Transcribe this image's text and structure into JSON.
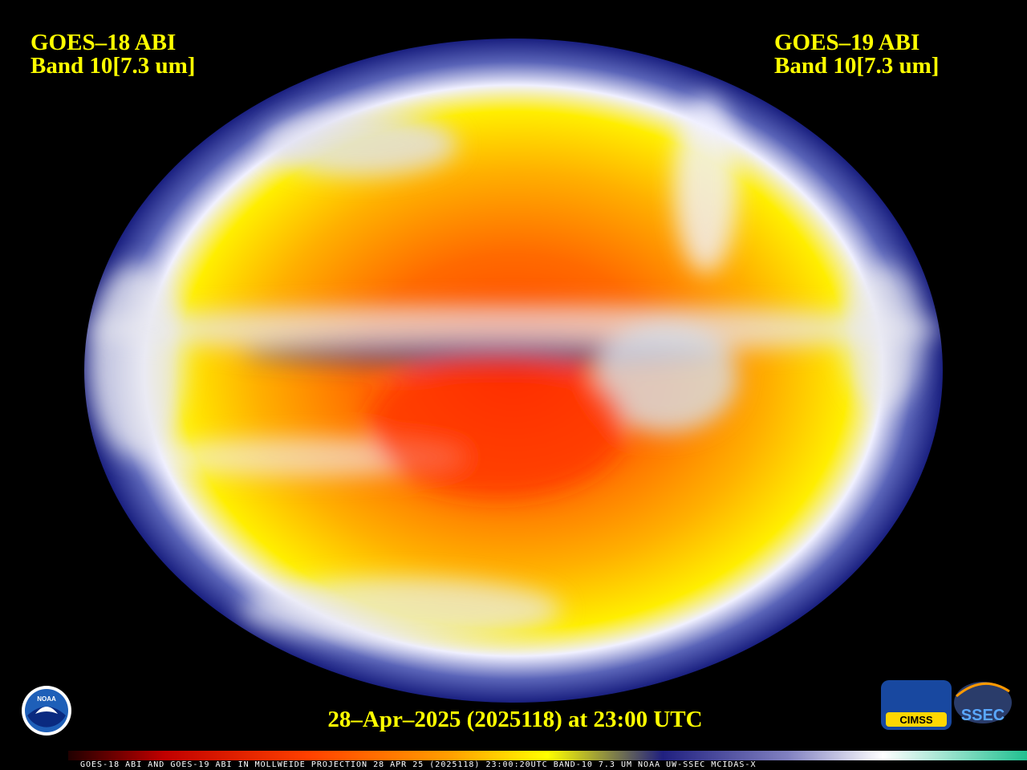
{
  "header": {
    "left": {
      "satellite": "GOES–18 ABI",
      "band": "Band 10[7.3 um]"
    },
    "right": {
      "satellite": "GOES–19 ABI",
      "band": "Band 10[7.3 um]"
    }
  },
  "timestamp": "28–Apr–2025 (2025118) at 23:00 UTC",
  "footer": "GOES-18 ABI AND GOES-19 ABI IN MOLLWEIDE PROJECTION 28 APR 25 (2025118) 23:00:20UTC BAND-10 7.3 UM NOAA UW-SSEC MCIDAS-X",
  "logos": {
    "noaa": "NOAA",
    "cimss": "CIMSS",
    "ssec": "SSEC"
  }
}
